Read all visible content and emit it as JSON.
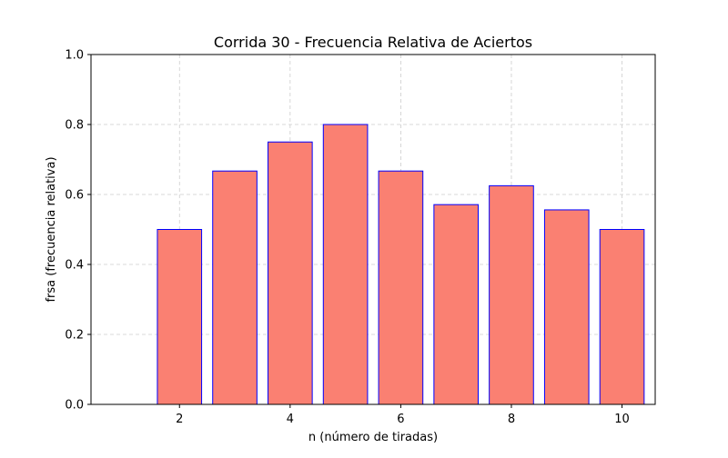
{
  "chart_data": {
    "type": "bar",
    "title": "Corrida 30 - Frecuencia Relativa de Aciertos",
    "xlabel": "n (número de tiradas)",
    "ylabel": "frsa (frecuencia relativa)",
    "x": [
      1,
      2,
      3,
      4,
      5,
      6,
      7,
      8,
      9,
      10
    ],
    "values": [
      0.0,
      0.5,
      0.667,
      0.75,
      0.8,
      0.667,
      0.571,
      0.625,
      0.556,
      0.5
    ],
    "xlim": [
      0.4,
      10.6
    ],
    "ylim": [
      0,
      1
    ],
    "xticks": [
      2,
      4,
      6,
      8,
      10
    ],
    "yticks": [
      0.0,
      0.2,
      0.4,
      0.6,
      0.8,
      1.0
    ],
    "xtick_labels": [
      "2",
      "4",
      "6",
      "8",
      "10"
    ],
    "ytick_labels": [
      "0.0",
      "0.2",
      "0.4",
      "0.6",
      "0.8",
      "1.0"
    ],
    "grid": true,
    "bar_color": "#fa8072",
    "bar_edge_color": "#0000ff"
  }
}
